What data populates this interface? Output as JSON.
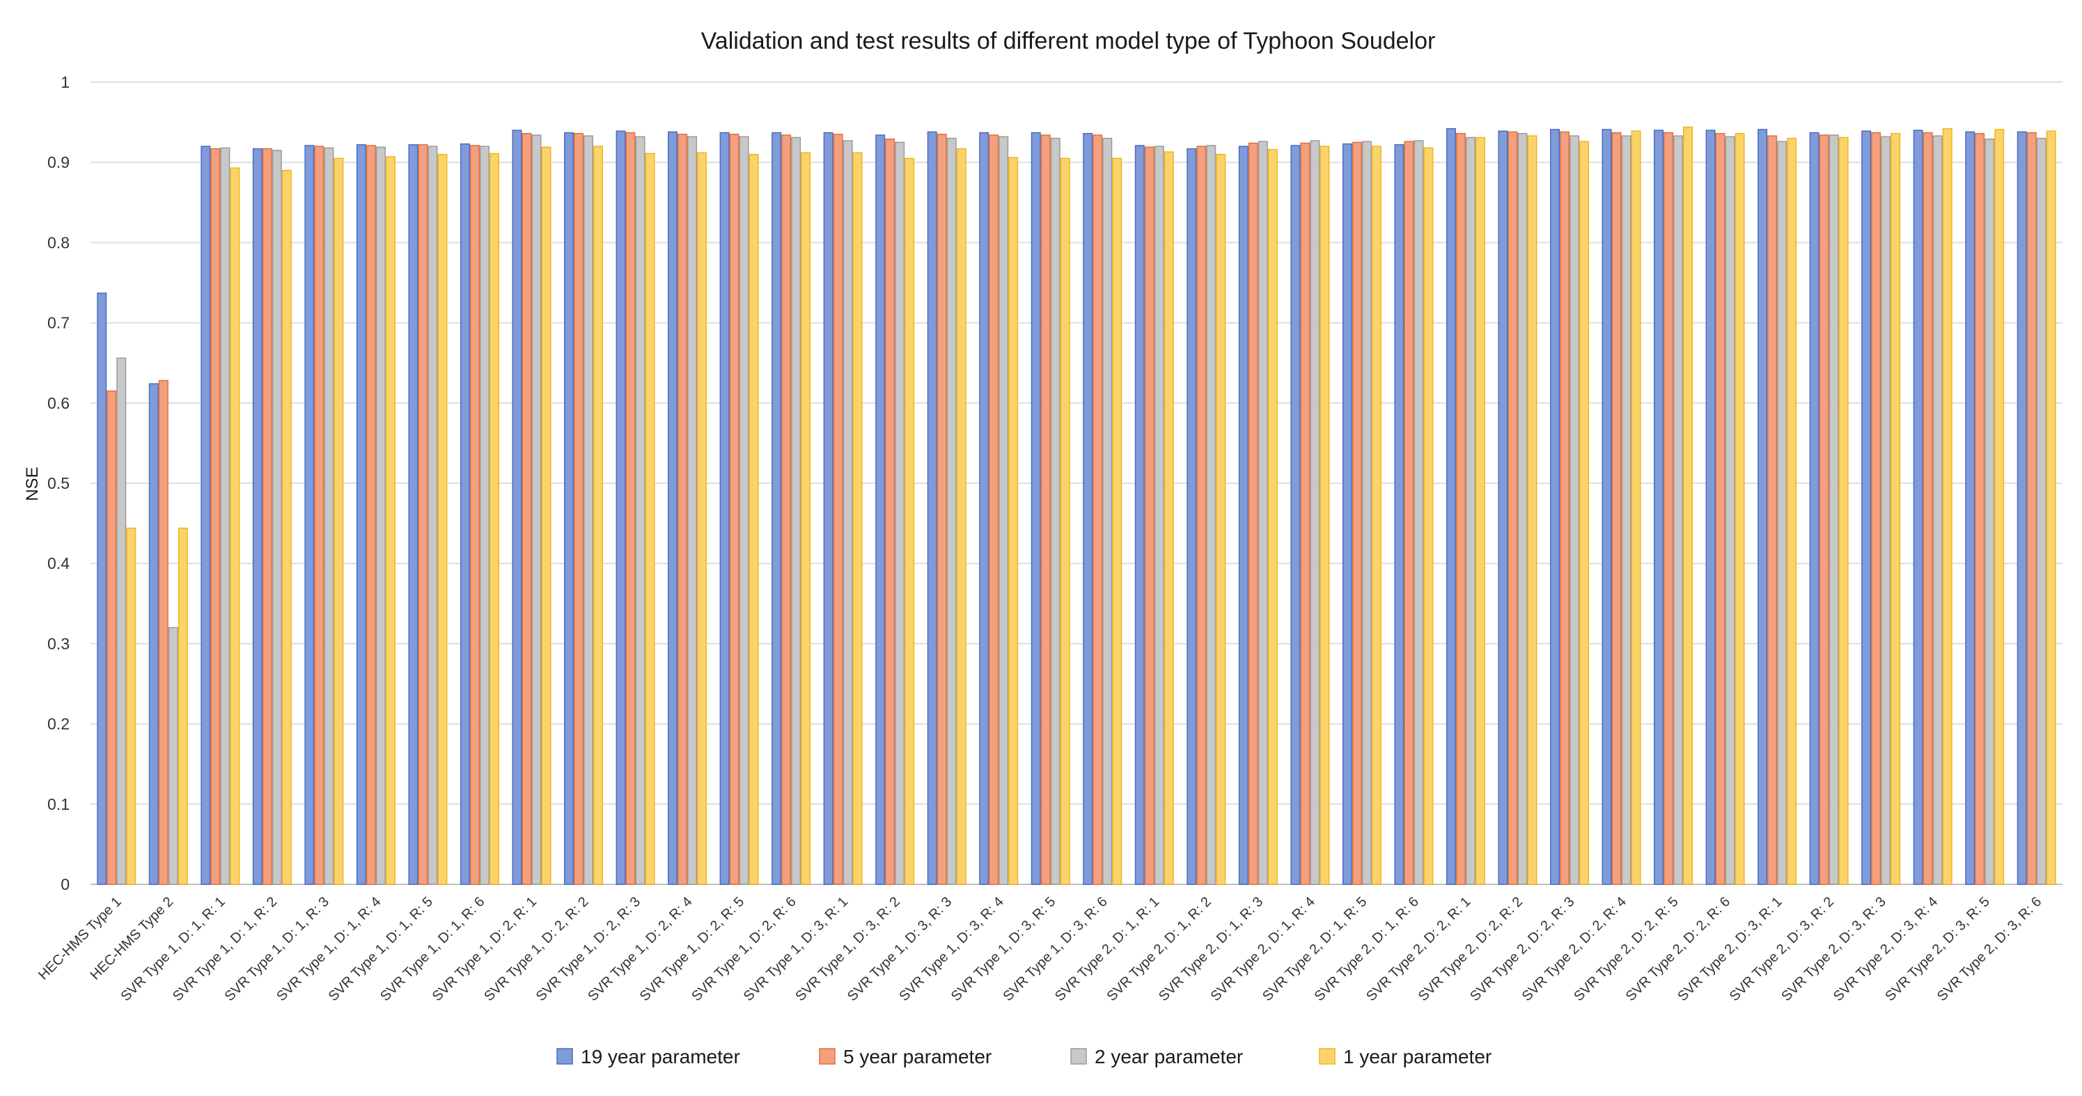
{
  "chart_data": {
    "type": "bar",
    "title": "Validation and test results of different model type of Typhoon Soudelor",
    "xlabel": "",
    "ylabel": "NSE",
    "ylim": [
      0,
      1
    ],
    "yticks": [
      "0",
      "0.1",
      "0.2",
      "0.3",
      "0.4",
      "0.5",
      "0.6",
      "0.7",
      "0.8",
      "0.9",
      "1"
    ],
    "grid": true,
    "legend_position": "bottom",
    "categories": [
      "HEC-HMS Type 1",
      "HEC-HMS Type 2",
      "SVR Type 1,  D: 1, R: 1",
      "SVR Type 1,  D: 1, R: 2",
      "SVR Type 1,  D: 1, R: 3",
      "SVR Type 1,  D: 1, R: 4",
      "SVR Type 1,  D: 1, R: 5",
      "SVR Type 1,  D: 1, R: 6",
      "SVR Type 1,  D: 2, R: 1",
      "SVR Type 1,  D: 2, R: 2",
      "SVR Type 1,  D: 2, R: 3",
      "SVR Type 1,  D: 2, R: 4",
      "SVR Type 1,  D: 2, R: 5",
      "SVR Type 1,  D: 2, R: 6",
      "SVR Type 1,  D: 3, R: 1",
      "SVR Type 1,  D: 3, R: 2",
      "SVR Type 1,  D: 3, R: 3",
      "SVR Type 1,  D: 3, R: 4",
      "SVR Type 1,  D: 3, R: 5",
      "SVR Type 1,  D: 3, R: 6",
      "SVR Type 2,  D: 1, R: 1",
      "SVR Type 2,  D: 1, R: 2",
      "SVR Type 2,  D: 1, R: 3",
      "SVR Type 2,  D: 1, R: 4",
      "SVR Type 2,  D: 1, R: 5",
      "SVR Type 2,  D: 1, R: 6",
      "SVR Type 2,  D: 2, R: 1",
      "SVR Type 2,  D: 2, R: 2",
      "SVR Type 2,  D: 2, R: 3",
      "SVR Type 2,  D: 2, R: 4",
      "SVR Type 2,  D: 2, R: 5",
      "SVR Type 2,  D: 2, R: 6",
      "SVR Type 2,  D: 3, R: 1",
      "SVR Type 2,  D: 3, R: 2",
      "SVR Type 2,  D: 3, R: 3",
      "SVR Type 2,  D: 3, R: 4",
      "SVR Type 2,  D: 3, R: 5",
      "SVR Type 2,  D: 3, R: 6"
    ],
    "series": [
      {
        "name": "19  year parameter",
        "color": "#7f9bd9",
        "edge": "#4a6cc0",
        "values": [
          0.737,
          0.624,
          0.92,
          0.917,
          0.921,
          0.922,
          0.922,
          0.923,
          0.94,
          0.937,
          0.939,
          0.938,
          0.937,
          0.937,
          0.937,
          0.934,
          0.938,
          0.937,
          0.937,
          0.936,
          0.921,
          0.917,
          0.92,
          0.921,
          0.923,
          0.922,
          0.942,
          0.939,
          0.941,
          0.941,
          0.94,
          0.94,
          0.941,
          0.937,
          0.939,
          0.94,
          0.938,
          0.938
        ]
      },
      {
        "name": "5  year parameter",
        "color": "#f4a07e",
        "edge": "#e0703f",
        "values": [
          0.615,
          0.628,
          0.917,
          0.917,
          0.92,
          0.921,
          0.922,
          0.921,
          0.936,
          0.936,
          0.937,
          0.935,
          0.935,
          0.934,
          0.935,
          0.929,
          0.935,
          0.934,
          0.934,
          0.934,
          0.919,
          0.92,
          0.924,
          0.924,
          0.925,
          0.926,
          0.936,
          0.938,
          0.938,
          0.937,
          0.937,
          0.936,
          0.933,
          0.934,
          0.937,
          0.937,
          0.936,
          0.937
        ]
      },
      {
        "name": "2  year parameter",
        "color": "#c8c8c8",
        "edge": "#9a9a9a",
        "values": [
          0.656,
          0.32,
          0.918,
          0.915,
          0.918,
          0.919,
          0.92,
          0.92,
          0.934,
          0.933,
          0.932,
          0.932,
          0.932,
          0.931,
          0.927,
          0.925,
          0.93,
          0.932,
          0.93,
          0.93,
          0.92,
          0.921,
          0.926,
          0.927,
          0.926,
          0.927,
          0.931,
          0.936,
          0.933,
          0.933,
          0.933,
          0.932,
          0.926,
          0.934,
          0.932,
          0.933,
          0.929,
          0.93
        ]
      },
      {
        "name": "1  year parameter",
        "color": "#fcd36a",
        "edge": "#f0b51f",
        "values": [
          0.444,
          0.444,
          0.893,
          0.89,
          0.905,
          0.907,
          0.91,
          0.911,
          0.919,
          0.92,
          0.911,
          0.912,
          0.91,
          0.912,
          0.912,
          0.905,
          0.917,
          0.906,
          0.905,
          0.905,
          0.913,
          0.91,
          0.916,
          0.92,
          0.92,
          0.918,
          0.931,
          0.933,
          0.926,
          0.939,
          0.944,
          0.936,
          0.93,
          0.931,
          0.936,
          0.942,
          0.941,
          0.939
        ]
      }
    ]
  }
}
